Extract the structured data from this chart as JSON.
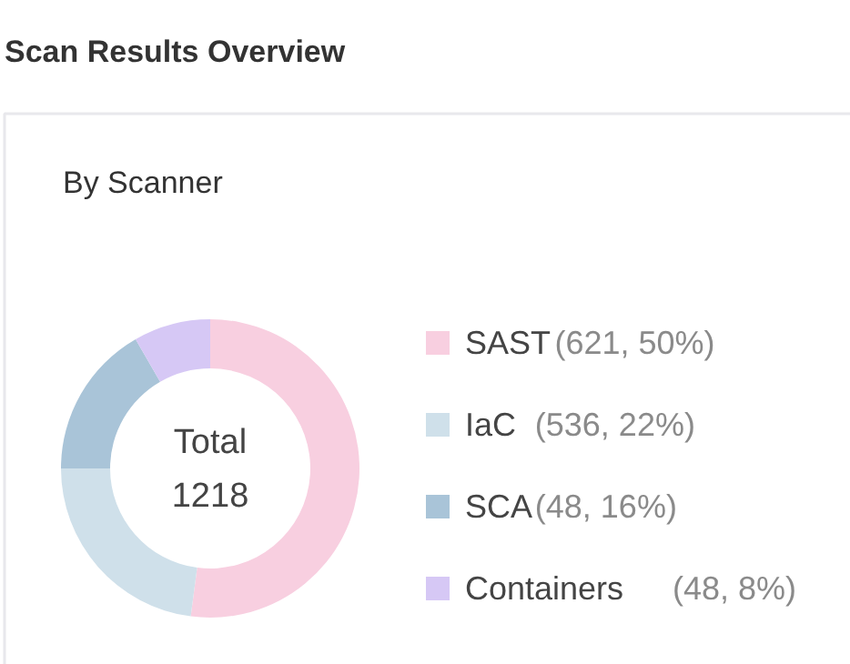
{
  "chart_data": {
    "type": "donut",
    "title": "Scan Results Overview",
    "subtitle": "By Scanner",
    "categories": [
      "SAST",
      "IaC",
      "SCA",
      "Containers"
    ],
    "values": [
      50,
      22,
      16,
      8
    ],
    "value_labels": [
      "(621, 50%)",
      "(536, 22%)",
      "(48, 16%)",
      "(48, 8%)"
    ],
    "colors": [
      "#f8cfe0",
      "#cfe0ea",
      "#a9c4d8",
      "#d6c8f5"
    ],
    "annotations": [
      "Total",
      "1218"
    ],
    "legend": "right"
  }
}
